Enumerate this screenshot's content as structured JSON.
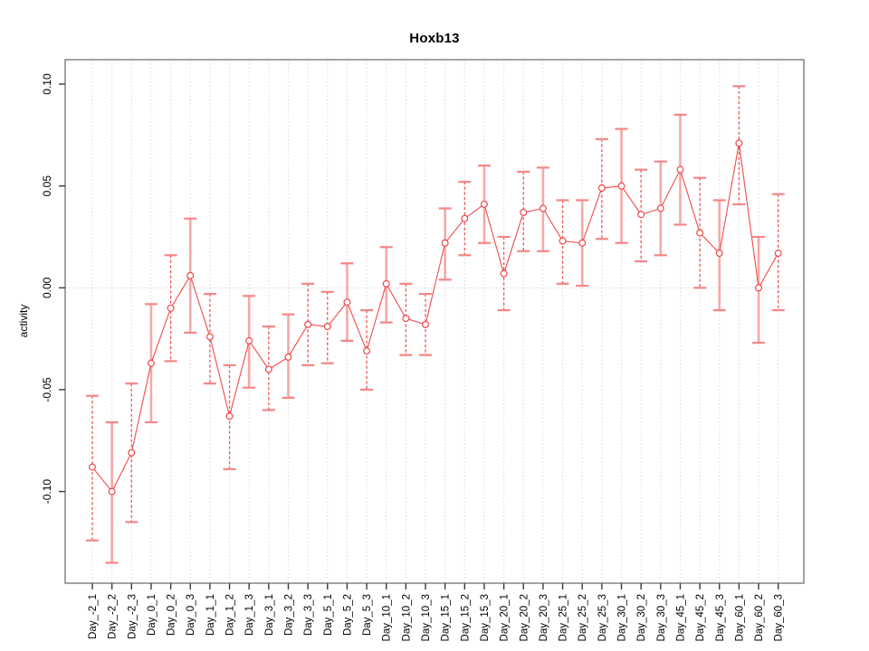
{
  "window": {
    "background": "#ffffff"
  },
  "chart_data": {
    "type": "line",
    "title": "Hoxb13",
    "xlabel": "",
    "ylabel": "activity",
    "legend_position": "none",
    "marker": "open-circle",
    "grid": "vertical-dotted-gridlines-and-dotted-zero-line",
    "ylim": [
      -0.145,
      0.112
    ],
    "yticks": [
      -0.1,
      -0.05,
      0.0,
      0.05,
      0.1
    ],
    "ytick_labels": [
      "-0.10",
      "-0.05",
      "0.00",
      "0.05",
      "0.10"
    ],
    "categories": [
      "Day_-2_1",
      "Day_-2_2",
      "Day_-2_3",
      "Day_0_1",
      "Day_0_2",
      "Day_0_3",
      "Day_1_1",
      "Day_1_2",
      "Day_1_3",
      "Day_3_1",
      "Day_3_2",
      "Day_3_3",
      "Day_5_1",
      "Day_5_2",
      "Day_5_3",
      "Day_10_1",
      "Day_10_2",
      "Day_10_3",
      "Day_15_1",
      "Day_15_2",
      "Day_15_3",
      "Day_20_1",
      "Day_20_2",
      "Day_20_3",
      "Day_25_1",
      "Day_25_2",
      "Day_25_3",
      "Day_30_1",
      "Day_30_2",
      "Day_30_3",
      "Day_45_1",
      "Day_45_2",
      "Day_45_3",
      "Day_60_1",
      "Day_60_2",
      "Day_60_3"
    ],
    "series": [
      {
        "name": "activity",
        "values": [
          -0.088,
          -0.1,
          -0.081,
          -0.037,
          -0.01,
          0.006,
          -0.024,
          -0.063,
          -0.026,
          -0.04,
          -0.034,
          -0.018,
          -0.019,
          -0.007,
          -0.031,
          0.002,
          -0.015,
          -0.018,
          0.022,
          0.034,
          0.041,
          0.007,
          0.037,
          0.039,
          0.023,
          0.022,
          0.049,
          0.05,
          0.036,
          0.039,
          0.058,
          0.027,
          0.017,
          0.071,
          0.0,
          0.017
        ],
        "error_low": [
          -0.124,
          -0.135,
          -0.115,
          -0.066,
          -0.036,
          -0.022,
          -0.047,
          -0.089,
          -0.049,
          -0.06,
          -0.054,
          -0.038,
          -0.037,
          -0.026,
          -0.05,
          -0.017,
          -0.033,
          -0.033,
          0.004,
          0.016,
          0.022,
          -0.011,
          0.018,
          0.018,
          0.002,
          0.001,
          0.024,
          0.022,
          0.013,
          0.016,
          0.031,
          0.0,
          -0.011,
          0.041,
          -0.027,
          -0.011
        ],
        "error_high": [
          -0.053,
          -0.066,
          -0.047,
          -0.008,
          0.016,
          0.034,
          -0.003,
          -0.038,
          -0.004,
          -0.019,
          -0.013,
          0.002,
          -0.002,
          0.012,
          -0.011,
          0.02,
          0.002,
          -0.003,
          0.039,
          0.052,
          0.06,
          0.025,
          0.057,
          0.059,
          0.043,
          0.043,
          0.073,
          0.078,
          0.058,
          0.062,
          0.085,
          0.054,
          0.043,
          0.099,
          0.025,
          0.046
        ],
        "error_bar_styles": [
          "dashed",
          "solid",
          "dashed",
          "solid",
          "dashed",
          "solid",
          "dashed",
          "dashed",
          "solid",
          "dashed",
          "solid",
          "dashed",
          "dashed",
          "solid",
          "dashed",
          "solid",
          "dashed",
          "dashed",
          "solid",
          "dashed",
          "solid",
          "dashed",
          "dashed",
          "solid",
          "dashed",
          "solid",
          "dashed",
          "solid",
          "dashed",
          "solid",
          "solid",
          "dashed",
          "solid",
          "dashed",
          "solid",
          "dashed"
        ]
      }
    ],
    "colors": {
      "series_line": "#f04b4b",
      "marker_stroke": "#ef4848",
      "error_bar_dashed": "#ef5252",
      "error_bar_solid": "#f7a8a8",
      "error_cap": "#f58585",
      "gridline": "#d9d9d9",
      "zero_line": "#d9d9d9",
      "frame": "#8c8c8c",
      "tick_mark": "#3a3a3a",
      "tick_text": "#000000",
      "title_text": "#000000"
    }
  }
}
